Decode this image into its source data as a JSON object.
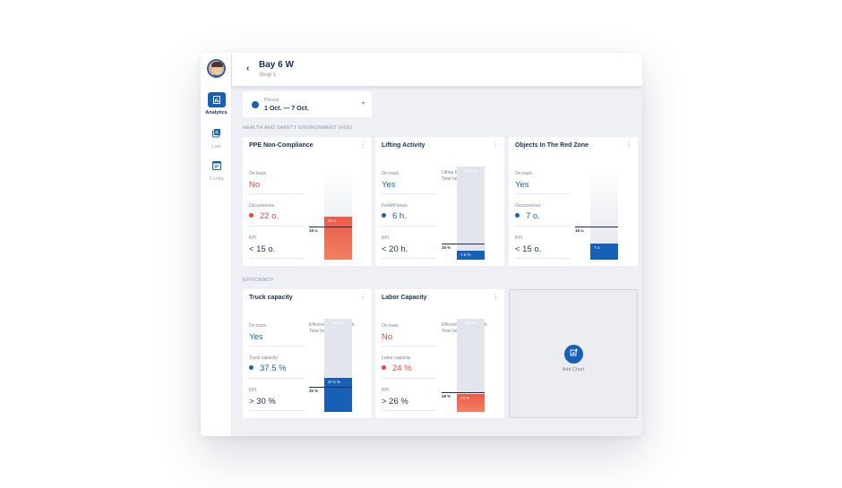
{
  "header": {
    "title": "Bay 6 W",
    "subtitle": "Shop 1",
    "back_icon": "chevron-left-icon"
  },
  "sidebar": {
    "items": [
      {
        "label": "Analytics",
        "icon": "analytics-icon",
        "active": true
      },
      {
        "label": "Line",
        "icon": "line-icon",
        "active": false
      },
      {
        "label": "Config",
        "icon": "config-icon",
        "active": false
      }
    ]
  },
  "period": {
    "label": "Period",
    "value": "1 Oct. — 7 Oct."
  },
  "sections": {
    "hse": "HEALTH AND SAFETY ENVIRONMENT (HSE)",
    "efficiency": "EFFICIENCY"
  },
  "cards": [
    {
      "title": "PPE Non-Compliance",
      "on_track_label": "On track",
      "on_track_value": "No",
      "metric_label": "Occurrences",
      "metric_value": "22 o.",
      "kpi_label": "KPI",
      "kpi_value": "< 15 o.",
      "info_line1": "",
      "info_line2": "",
      "bar_label": "22 o.",
      "bar_color": "#e8483c",
      "kpi_marker": "15 o.",
      "full_label": ""
    },
    {
      "title": "Lifting Activity",
      "on_track_label": "On track",
      "on_track_value": "Yes",
      "metric_label": "Forklift hours",
      "metric_value": "6 h.",
      "kpi_label": "KPI",
      "kpi_value": "< 20 h.",
      "info_line1": "Lifting hours — 6 h.",
      "info_line2": "Total hours — 80 h.",
      "bar_label": "7.5 %",
      "bar_color": "#1760b8",
      "kpi_marker": "25 %",
      "full_label": "100 %"
    },
    {
      "title": "Objects In The Red Zone",
      "on_track_label": "On track",
      "on_track_value": "Yes",
      "metric_label": "Occurrences",
      "metric_value": "7 o.",
      "kpi_label": "KPI",
      "kpi_value": "< 15 o.",
      "info_line1": "",
      "info_line2": "",
      "bar_label": "7 o.",
      "bar_color": "#1760b8",
      "kpi_marker": "15 o.",
      "full_label": ""
    },
    {
      "title": "Truck capacity",
      "on_track_label": "On track",
      "on_track_value": "Yes",
      "metric_label": "Truck capacity",
      "metric_value": "37.5 %",
      "kpi_label": "KPI",
      "kpi_value": "> 30 %",
      "info_line1": "Effective hours — 30 h.",
      "info_line2": "Total hours — 80 h.",
      "bar_label": "37.5 %",
      "bar_color": "#1760b8",
      "kpi_marker": "30 %",
      "full_label": "100 %"
    },
    {
      "title": "Labor Capacity",
      "on_track_label": "On track",
      "on_track_value": "No",
      "metric_label": "Labor capacity",
      "metric_value": "24 %",
      "kpi_label": "KPI",
      "kpi_value": "> 26 %",
      "info_line1": "Effective hours — 58 h.",
      "info_line2": "Total hours — 240 h.",
      "bar_label": "24 %",
      "bar_color": "#e8483c",
      "kpi_marker": "26 %",
      "full_label": "100 %"
    }
  ],
  "add_chart": {
    "label": "Add Chart",
    "icon": "add-chart-icon"
  },
  "colors": {
    "accent": "#1760b8",
    "negative": "#e8483c",
    "text": "#1b2f55"
  }
}
